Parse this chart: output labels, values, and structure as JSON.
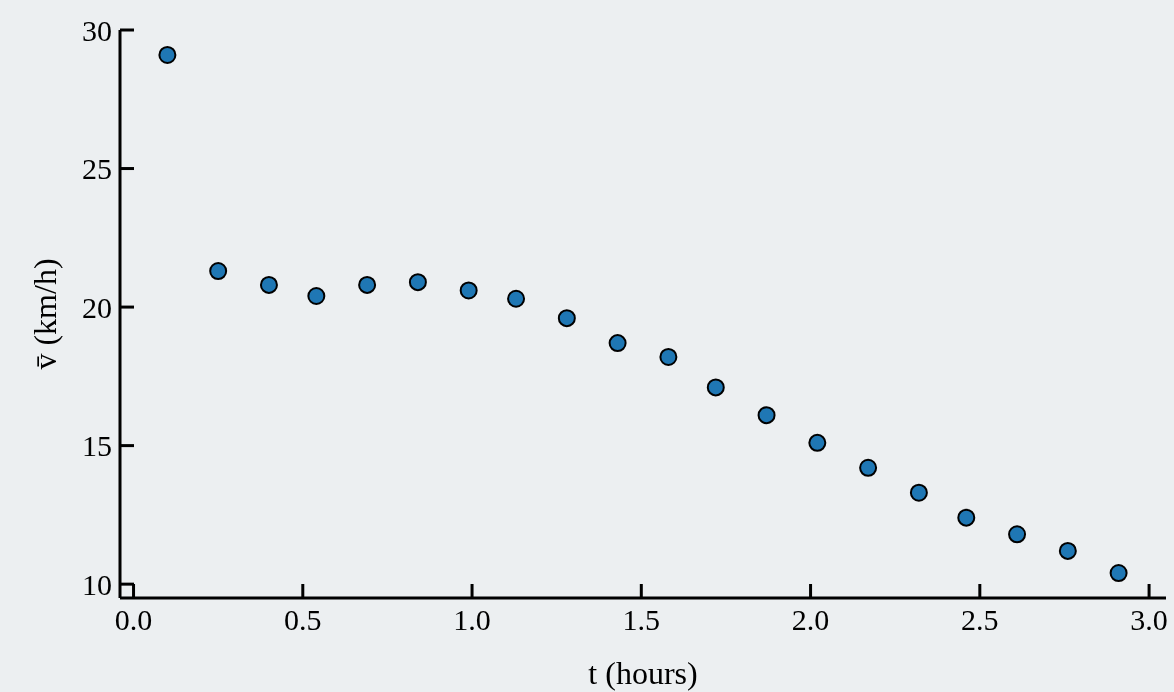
{
  "chart_data": {
    "type": "scatter",
    "xlabel": "t (hours)",
    "ylabel": "v̄ (km/h)",
    "x": [
      0.1,
      0.25,
      0.4,
      0.54,
      0.69,
      0.84,
      0.99,
      1.13,
      1.28,
      1.43,
      1.58,
      1.72,
      1.87,
      2.02,
      2.17,
      2.32,
      2.46,
      2.61,
      2.76,
      2.91
    ],
    "series": [
      {
        "color": "#1f77b4",
        "values": [
          29.1,
          21.3,
          20.8,
          20.4,
          20.8,
          20.9,
          20.6,
          20.3,
          19.6,
          18.7,
          18.2,
          17.1,
          16.1,
          15.1,
          14.2,
          13.3,
          12.4,
          11.8,
          11.2,
          10.4
        ]
      }
    ],
    "xlim": [
      -0.04,
      3.05
    ],
    "ylim": [
      9.5,
      30
    ],
    "xticks": [
      {
        "value": 0,
        "label": "0.0"
      },
      0.5,
      {
        "value": 1,
        "label": "1.0"
      },
      1.5,
      {
        "value": 2,
        "label": "2.0"
      },
      2.5,
      {
        "value": 3,
        "label": "3.0"
      }
    ],
    "yticks": [
      10,
      15,
      20,
      25,
      30
    ],
    "grid": false,
    "marker": "circle"
  }
}
